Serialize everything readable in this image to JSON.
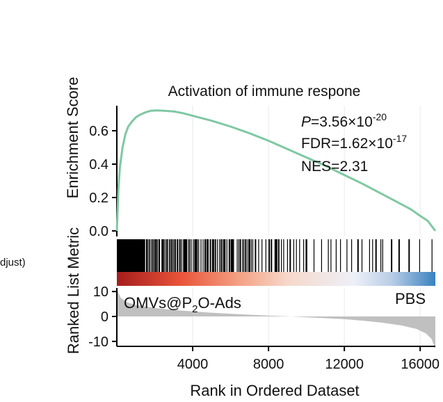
{
  "page": {
    "left_clip_text": "djust)"
  },
  "chart_data": {
    "type": "line",
    "title": "Activation of immune respone",
    "xlabel": "Rank in Ordered Dataset",
    "xlim": [
      0,
      16800
    ],
    "x_ticks": [
      4000,
      8000,
      12000,
      16000
    ],
    "x_tick_labels": [
      "4000",
      "8000",
      "12000",
      "16000"
    ],
    "vertical_grid": true,
    "enrichment": {
      "ylabel": "Enrichment Score",
      "ylim": [
        0.0,
        0.75
      ],
      "y_ticks": [
        0.0,
        0.2,
        0.4,
        0.6
      ],
      "y_tick_labels": [
        "0.0",
        "0.2",
        "0.4",
        "0.6"
      ],
      "line_color": "#7fc8a3",
      "points": [
        [
          0,
          0.0
        ],
        [
          40,
          0.12
        ],
        [
          80,
          0.25
        ],
        [
          160,
          0.38
        ],
        [
          300,
          0.5
        ],
        [
          450,
          0.58
        ],
        [
          600,
          0.625
        ],
        [
          800,
          0.655
        ],
        [
          1000,
          0.68
        ],
        [
          1200,
          0.695
        ],
        [
          1500,
          0.71
        ],
        [
          1800,
          0.72
        ],
        [
          2100,
          0.722
        ],
        [
          2500,
          0.72
        ],
        [
          3000,
          0.716
        ],
        [
          3500,
          0.705
        ],
        [
          4000,
          0.69
        ],
        [
          5000,
          0.66
        ],
        [
          6000,
          0.625
        ],
        [
          7000,
          0.585
        ],
        [
          8000,
          0.54
        ],
        [
          9000,
          0.49
        ],
        [
          10000,
          0.44
        ],
        [
          11000,
          0.39
        ],
        [
          12000,
          0.335
        ],
        [
          13000,
          0.28
        ],
        [
          14000,
          0.22
        ],
        [
          15000,
          0.16
        ],
        [
          15500,
          0.13
        ],
        [
          16000,
          0.09
        ],
        [
          16400,
          0.06
        ],
        [
          16800,
          0.0
        ]
      ]
    },
    "stats": {
      "p_prefix": "P",
      "p_value": "=3.56×10",
      "p_exp": "-20",
      "fdr_value": "FDR=1.62×10",
      "fdr_exp": "-17",
      "nes": "NES=2.31"
    },
    "hits": {
      "color": "#000000",
      "dense_ranges": [
        [
          0,
          1450
        ]
      ],
      "sparse_density": [
        {
          "from": 1450,
          "to": 6000,
          "step": 80
        },
        {
          "from": 6000,
          "to": 10000,
          "step": 140
        },
        {
          "from": 10000,
          "to": 14000,
          "step": 260
        },
        {
          "from": 14000,
          "to": 16800,
          "step": 450
        }
      ]
    },
    "heat_band": {
      "stops": [
        {
          "x": 0,
          "color": "#a51c1c"
        },
        {
          "x": 3400,
          "color": "#e9553a"
        },
        {
          "x": 6500,
          "color": "#f4a285"
        },
        {
          "x": 9000,
          "color": "#f6d8cb"
        },
        {
          "x": 12500,
          "color": "#eef0f8"
        },
        {
          "x": 14500,
          "color": "#b8cde6"
        },
        {
          "x": 16800,
          "color": "#3a82bf"
        }
      ]
    },
    "ranked_metric": {
      "ylabel": "Ranked List Metric",
      "ylim": [
        -12,
        12
      ],
      "y_ticks": [
        10,
        0,
        -10
      ],
      "y_tick_labels": [
        "10",
        "0",
        "-10"
      ],
      "fill_color": "#c0c0c0",
      "points": [
        [
          0,
          11
        ],
        [
          200,
          7.5
        ],
        [
          500,
          5.8
        ],
        [
          1000,
          4.6
        ],
        [
          2000,
          3.4
        ],
        [
          3000,
          2.6
        ],
        [
          4000,
          2.0
        ],
        [
          5000,
          1.5
        ],
        [
          6000,
          1.1
        ],
        [
          7000,
          0.7
        ],
        [
          8000,
          0.35
        ],
        [
          9000,
          0.05
        ],
        [
          10000,
          -0.3
        ],
        [
          11000,
          -0.7
        ],
        [
          12000,
          -1.1
        ],
        [
          13000,
          -1.7
        ],
        [
          14000,
          -2.5
        ],
        [
          15000,
          -3.6
        ],
        [
          15800,
          -5.0
        ],
        [
          16300,
          -6.8
        ],
        [
          16600,
          -9.0
        ],
        [
          16800,
          -13.0
        ]
      ],
      "group_left": "OMVs@P",
      "group_left_sub": "2",
      "group_left_suffix": "O-Ads",
      "group_right": "PBS"
    }
  }
}
